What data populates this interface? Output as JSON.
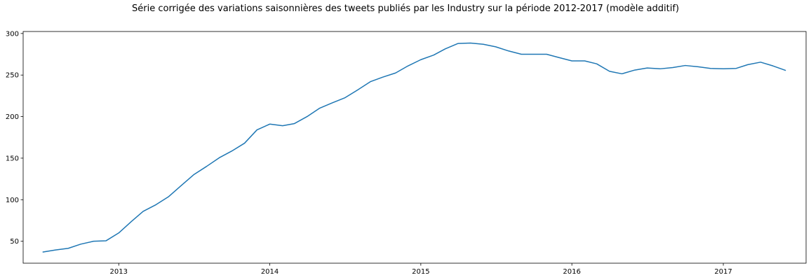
{
  "chart_data": {
    "type": "line",
    "title": "Série corrigée des variations saisonnières des tweets publiés par les Industry sur la période 2012-2017 (modèle additif)",
    "xlabel": "",
    "ylabel": "",
    "x_axis": {
      "type": "date",
      "range": [
        "2012-05-15",
        "2017-07-20"
      ],
      "ticks": [
        {
          "date": "2013-01-01",
          "label": "2013"
        },
        {
          "date": "2014-01-01",
          "label": "2014"
        },
        {
          "date": "2015-01-01",
          "label": "2015"
        },
        {
          "date": "2016-01-01",
          "label": "2016"
        },
        {
          "date": "2017-01-01",
          "label": "2017"
        }
      ]
    },
    "y_axis": {
      "range": [
        23.6,
        302.4
      ],
      "ticks": [
        50,
        100,
        150,
        200,
        250,
        300
      ]
    },
    "grid": false,
    "legend": "none",
    "series": [
      {
        "color": "#1f77b4",
        "x": [
          "2012-07-01",
          "2012-08-01",
          "2012-09-01",
          "2012-10-01",
          "2012-11-01",
          "2012-12-01",
          "2013-01-01",
          "2013-02-01",
          "2013-03-01",
          "2013-04-01",
          "2013-05-01",
          "2013-06-01",
          "2013-07-01",
          "2013-08-01",
          "2013-09-01",
          "2013-10-01",
          "2013-11-01",
          "2013-12-01",
          "2014-01-01",
          "2014-02-01",
          "2014-03-01",
          "2014-04-01",
          "2014-05-01",
          "2014-06-01",
          "2014-07-01",
          "2014-08-01",
          "2014-09-01",
          "2014-10-01",
          "2014-11-01",
          "2014-12-01",
          "2015-01-01",
          "2015-02-01",
          "2015-03-01",
          "2015-04-01",
          "2015-05-01",
          "2015-06-01",
          "2015-07-01",
          "2015-08-01",
          "2015-09-01",
          "2015-10-01",
          "2015-11-01",
          "2015-12-01",
          "2016-01-01",
          "2016-02-01",
          "2016-03-01",
          "2016-04-01",
          "2016-05-01",
          "2016-06-01",
          "2016-07-01",
          "2016-08-01",
          "2016-09-01",
          "2016-10-01",
          "2016-11-01",
          "2016-12-01",
          "2017-01-01",
          "2017-02-01",
          "2017-03-01",
          "2017-04-01",
          "2017-05-01",
          "2017-06-01"
        ],
        "y": [
          37,
          39.5,
          41.5,
          46.5,
          50,
          50.5,
          60,
          74,
          86,
          94,
          103.5,
          117,
          130,
          140,
          150.5,
          158.5,
          168,
          184,
          191,
          189,
          191.5,
          200,
          210,
          216.5,
          222.5,
          232,
          242,
          247.5,
          252.5,
          261,
          268.5,
          274,
          281.5,
          288,
          288.5,
          287,
          284,
          279,
          275,
          275,
          275,
          271,
          267,
          267,
          263.5,
          254.5,
          251.5,
          256,
          258.5,
          257.5,
          259,
          261.5,
          260,
          258,
          257.5,
          258,
          262.5,
          265.5,
          261,
          255.5
        ]
      }
    ]
  }
}
